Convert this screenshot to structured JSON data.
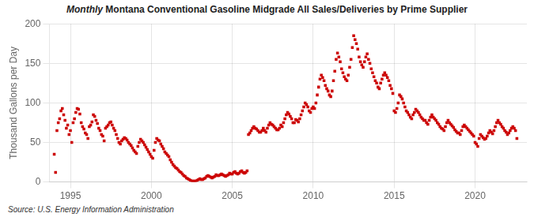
{
  "chart_data": {
    "type": "scatter",
    "title": "Monthly Montana Conventional Gasoline Midgrade All Sales/Deliveries by Prime Supplier",
    "ylabel": "Thousand Gallons per Day",
    "annotations": [
      "Source: U.S. Energy Information Administration"
    ],
    "color": "#cc0000",
    "marker": "square",
    "grid": true,
    "xlim": [
      1993.7,
      2023.2
    ],
    "xticks": [
      1995,
      2000,
      2005,
      2010,
      2015,
      2020
    ],
    "ylim": [
      0,
      200
    ],
    "yticks": [
      0,
      50,
      100,
      150,
      200
    ],
    "x": [
      1994.0,
      1994.083,
      1994.167,
      1994.25,
      1994.333,
      1994.417,
      1994.5,
      1994.583,
      1994.667,
      1994.75,
      1994.833,
      1994.917,
      1995.0,
      1995.083,
      1995.167,
      1995.25,
      1995.333,
      1995.417,
      1995.5,
      1995.583,
      1995.667,
      1995.75,
      1995.833,
      1995.917,
      1996.0,
      1996.083,
      1996.167,
      1996.25,
      1996.333,
      1996.417,
      1996.5,
      1996.583,
      1996.667,
      1996.75,
      1996.833,
      1996.917,
      1997.0,
      1997.083,
      1997.167,
      1997.25,
      1997.333,
      1997.417,
      1997.5,
      1997.583,
      1997.667,
      1997.75,
      1997.833,
      1997.917,
      1998.0,
      1998.083,
      1998.167,
      1998.25,
      1998.333,
      1998.417,
      1998.5,
      1998.583,
      1998.667,
      1998.75,
      1998.833,
      1998.917,
      1999.0,
      1999.083,
      1999.167,
      1999.25,
      1999.333,
      1999.417,
      1999.5,
      1999.583,
      1999.667,
      1999.75,
      1999.833,
      1999.917,
      2000.0,
      2000.083,
      2000.167,
      2000.25,
      2000.333,
      2000.417,
      2000.5,
      2000.583,
      2000.667,
      2000.75,
      2000.833,
      2000.917,
      2001.0,
      2001.083,
      2001.167,
      2001.25,
      2001.333,
      2001.417,
      2001.5,
      2001.583,
      2001.667,
      2001.75,
      2001.833,
      2001.917,
      2002.0,
      2002.083,
      2002.167,
      2002.25,
      2002.333,
      2002.417,
      2002.5,
      2002.583,
      2002.667,
      2002.75,
      2002.833,
      2002.917,
      2003.0,
      2003.083,
      2003.167,
      2003.25,
      2003.333,
      2003.417,
      2003.5,
      2003.583,
      2003.667,
      2003.75,
      2003.833,
      2003.917,
      2004.0,
      2004.083,
      2004.167,
      2004.25,
      2004.333,
      2004.417,
      2004.5,
      2004.583,
      2004.667,
      2004.75,
      2004.833,
      2004.917,
      2005.0,
      2005.083,
      2005.167,
      2005.25,
      2005.333,
      2005.417,
      2005.5,
      2005.583,
      2005.667,
      2005.75,
      2005.833,
      2005.917,
      2006.0,
      2006.083,
      2006.167,
      2006.25,
      2006.333,
      2006.417,
      2006.5,
      2006.583,
      2006.667,
      2006.75,
      2006.833,
      2006.917,
      2007.0,
      2007.083,
      2007.167,
      2007.25,
      2007.333,
      2007.417,
      2007.5,
      2007.583,
      2007.667,
      2007.75,
      2007.833,
      2007.917,
      2008.0,
      2008.083,
      2008.167,
      2008.25,
      2008.333,
      2008.417,
      2008.5,
      2008.583,
      2008.667,
      2008.75,
      2008.833,
      2008.917,
      2009.0,
      2009.083,
      2009.167,
      2009.25,
      2009.333,
      2009.417,
      2009.5,
      2009.583,
      2009.667,
      2009.75,
      2009.833,
      2009.917,
      2010.0,
      2010.083,
      2010.167,
      2010.25,
      2010.333,
      2010.417,
      2010.5,
      2010.583,
      2010.667,
      2010.75,
      2010.833,
      2010.917,
      2011.0,
      2011.083,
      2011.167,
      2011.25,
      2011.333,
      2011.417,
      2011.5,
      2011.583,
      2011.667,
      2011.75,
      2011.833,
      2011.917,
      2012.0,
      2012.083,
      2012.167,
      2012.25,
      2012.333,
      2012.417,
      2012.5,
      2012.583,
      2012.667,
      2012.75,
      2012.833,
      2012.917,
      2013.0,
      2013.083,
      2013.167,
      2013.25,
      2013.333,
      2013.417,
      2013.5,
      2013.583,
      2013.667,
      2013.75,
      2013.833,
      2013.917,
      2014.0,
      2014.083,
      2014.167,
      2014.25,
      2014.333,
      2014.417,
      2014.5,
      2014.583,
      2014.667,
      2014.75,
      2014.833,
      2014.917,
      2015.0,
      2015.083,
      2015.167,
      2015.25,
      2015.333,
      2015.417,
      2015.5,
      2015.583,
      2015.667,
      2015.75,
      2015.833,
      2015.917,
      2016.0,
      2016.083,
      2016.167,
      2016.25,
      2016.333,
      2016.417,
      2016.5,
      2016.583,
      2016.667,
      2016.75,
      2016.833,
      2016.917,
      2017.0,
      2017.083,
      2017.167,
      2017.25,
      2017.333,
      2017.417,
      2017.5,
      2017.583,
      2017.667,
      2017.75,
      2017.833,
      2017.917,
      2018.0,
      2018.083,
      2018.167,
      2018.25,
      2018.333,
      2018.417,
      2018.5,
      2018.583,
      2018.667,
      2018.75,
      2018.833,
      2018.917,
      2019.0,
      2019.083,
      2019.167,
      2019.25,
      2019.333,
      2019.417,
      2019.5,
      2019.583,
      2019.667,
      2019.75,
      2019.833,
      2019.917,
      2020.0,
      2020.083,
      2020.167,
      2020.25,
      2020.333,
      2020.417,
      2020.5,
      2020.583,
      2020.667,
      2020.75,
      2020.833,
      2020.917,
      2021.0,
      2021.083,
      2021.167,
      2021.25,
      2021.333,
      2021.417,
      2021.5,
      2021.583,
      2021.667,
      2021.75,
      2021.833,
      2021.917,
      2022.0,
      2022.083,
      2022.167,
      2022.25,
      2022.333,
      2022.417,
      2022.5,
      2022.583
    ],
    "values": [
      35,
      12,
      65,
      75,
      80,
      90,
      93,
      85,
      78,
      68,
      72,
      60,
      65,
      50,
      75,
      80,
      88,
      93,
      92,
      86,
      75,
      70,
      67,
      62,
      60,
      55,
      70,
      72,
      76,
      85,
      83,
      78,
      74,
      68,
      65,
      60,
      58,
      52,
      68,
      70,
      72,
      75,
      76,
      72,
      68,
      65,
      60,
      55,
      50,
      48,
      52,
      54,
      56,
      55,
      53,
      50,
      48,
      46,
      43,
      40,
      38,
      36,
      45,
      50,
      54,
      52,
      50,
      47,
      44,
      41,
      38,
      35,
      32,
      30,
      40,
      50,
      55,
      53,
      52,
      48,
      45,
      42,
      38,
      36,
      34,
      32,
      28,
      25,
      22,
      20,
      18,
      17,
      15,
      13,
      12,
      10,
      8,
      7,
      5,
      4,
      3,
      2,
      1,
      1,
      1,
      1,
      2,
      3,
      4,
      3,
      3,
      4,
      5,
      7,
      8,
      7,
      6,
      5,
      6,
      7,
      9,
      8,
      8,
      9,
      10,
      9,
      8,
      7,
      8,
      9,
      11,
      10,
      10,
      12,
      13,
      11,
      10,
      11,
      13,
      14,
      12,
      11,
      12,
      14,
      60,
      62,
      65,
      68,
      70,
      68,
      67,
      65,
      63,
      63,
      65,
      68,
      65,
      63,
      68,
      72,
      75,
      73,
      72,
      70,
      68,
      66,
      66,
      68,
      72,
      70,
      75,
      80,
      85,
      88,
      86,
      83,
      80,
      75,
      75,
      79,
      78,
      76,
      80,
      85,
      90,
      95,
      100,
      98,
      95,
      90,
      88,
      93,
      95,
      93,
      100,
      110,
      120,
      130,
      135,
      132,
      128,
      122,
      118,
      115,
      110,
      108,
      115,
      128,
      140,
      155,
      163,
      158,
      152,
      143,
      138,
      133,
      130,
      128,
      135,
      145,
      155,
      170,
      185,
      180,
      175,
      168,
      158,
      152,
      148,
      145,
      152,
      158,
      162,
      155,
      150,
      143,
      138,
      133,
      128,
      125,
      120,
      118,
      125,
      130,
      135,
      138,
      135,
      132,
      128,
      122,
      118,
      112,
      90,
      88,
      93,
      100,
      110,
      108,
      105,
      100,
      95,
      90,
      88,
      85,
      82,
      80,
      85,
      88,
      92,
      90,
      88,
      85,
      82,
      80,
      78,
      78,
      75,
      73,
      78,
      82,
      85,
      82,
      80,
      78,
      75,
      73,
      70,
      68,
      67,
      65,
      70,
      75,
      78,
      75,
      73,
      71,
      69,
      66,
      64,
      62,
      62,
      60,
      65,
      70,
      72,
      70,
      68,
      66,
      64,
      62,
      60,
      58,
      50,
      48,
      45,
      55,
      60,
      58,
      56,
      54,
      55,
      58,
      62,
      65,
      63,
      61,
      65,
      70,
      75,
      78,
      75,
      73,
      70,
      68,
      65,
      63,
      60,
      62,
      65,
      68,
      70,
      68,
      65,
      55
    ]
  }
}
